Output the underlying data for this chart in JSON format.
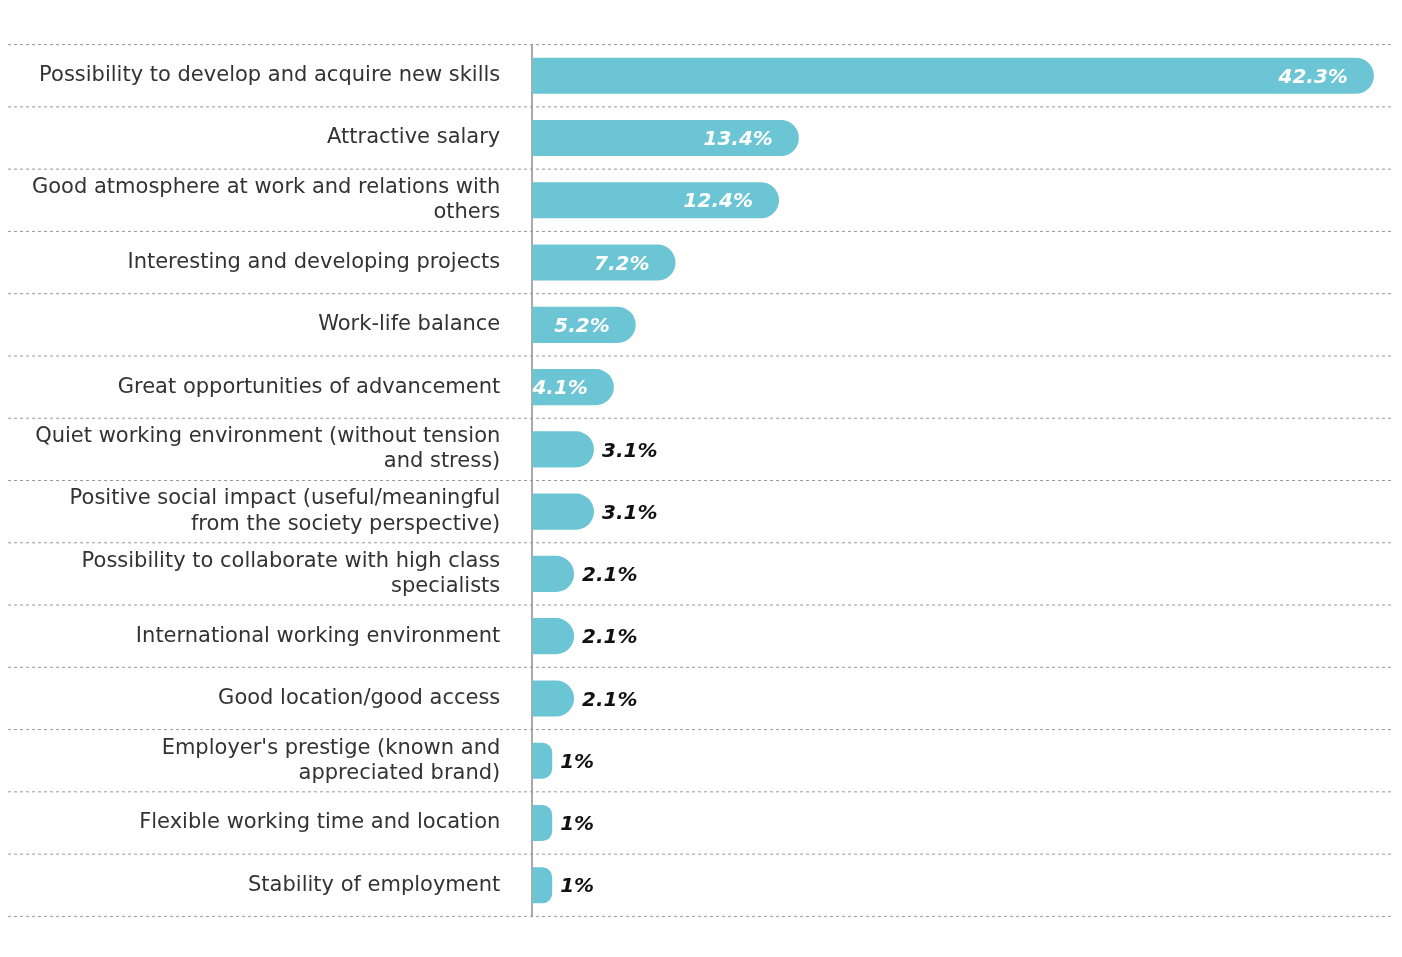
{
  "chart_data": {
    "type": "bar",
    "orientation": "horizontal",
    "grid": "y",
    "legend": false,
    "color": "#6cc5d4",
    "categories": [
      "Possibility to develop and acquire new skills",
      "Attractive salary",
      "Good atmosphere at work and relations with others",
      "Interesting and developing projects",
      "Work-life balance",
      "Great opportunities of advancement",
      "Quiet working environment (without tension and stress)",
      "Positive social impact (useful/meaningful from the society perspective)",
      "Possibility to collaborate with high class specialists",
      "International working environment",
      "Good location/good access",
      "Employer's prestige (known and appreciated brand)",
      "Flexible working time and location",
      "Stability of employment"
    ],
    "values": [
      42.3,
      13.4,
      12.4,
      7.2,
      5.2,
      4.1,
      3.1,
      3.1,
      2.1,
      2.1,
      2.1,
      1,
      1,
      1
    ],
    "value_labels": [
      "42.3%",
      "13.4%",
      "12.4%",
      "7.2%",
      "5.2%",
      "4.1%",
      "3.1%",
      "3.1%",
      "2.1%",
      "2.1%",
      "2.1%",
      "1%",
      "1%",
      "1%"
    ]
  }
}
